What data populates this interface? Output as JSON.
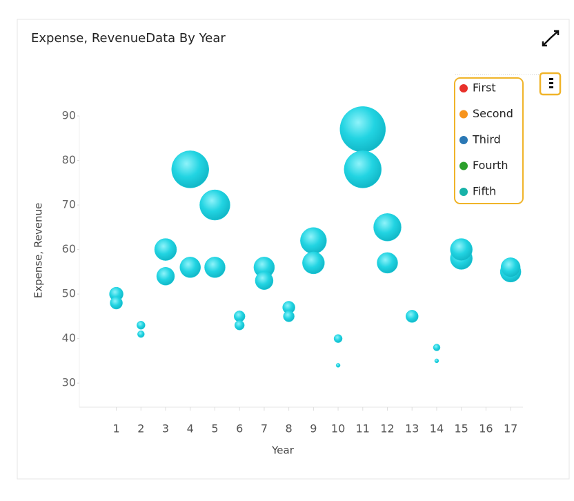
{
  "chart_data": {
    "type": "bubble",
    "title": "Expense, RevenueData By Year",
    "x_label": "Year",
    "y_label": "Expense, Revenue",
    "xlim": [
      -0.5,
      17.5
    ],
    "xticks": [
      1,
      2,
      3,
      4,
      5,
      6,
      7,
      8,
      9,
      10,
      11,
      12,
      13,
      14,
      15,
      16,
      17
    ],
    "ylim": [
      24.6,
      90
    ],
    "yticks": [
      30,
      40,
      50,
      60,
      70,
      80,
      90
    ],
    "color": "#22d4e2",
    "points": [
      {
        "x": 1,
        "y": 50,
        "size": 10
      },
      {
        "x": 1,
        "y": 48,
        "size": 9
      },
      {
        "x": 2,
        "y": 43,
        "size": 6
      },
      {
        "x": 2,
        "y": 41,
        "size": 5
      },
      {
        "x": 3,
        "y": 60,
        "size": 16
      },
      {
        "x": 3,
        "y": 54,
        "size": 13
      },
      {
        "x": 4,
        "y": 78,
        "size": 27
      },
      {
        "x": 4,
        "y": 56,
        "size": 15
      },
      {
        "x": 5,
        "y": 70,
        "size": 22
      },
      {
        "x": 5,
        "y": 56,
        "size": 15
      },
      {
        "x": 6,
        "y": 45,
        "size": 8
      },
      {
        "x": 6,
        "y": 43,
        "size": 7
      },
      {
        "x": 7,
        "y": 56,
        "size": 15
      },
      {
        "x": 7,
        "y": 53,
        "size": 13
      },
      {
        "x": 8,
        "y": 47,
        "size": 9
      },
      {
        "x": 8,
        "y": 45,
        "size": 8
      },
      {
        "x": 9,
        "y": 62,
        "size": 19
      },
      {
        "x": 9,
        "y": 57,
        "size": 16
      },
      {
        "x": 10,
        "y": 40,
        "size": 6
      },
      {
        "x": 10,
        "y": 34,
        "size": 3
      },
      {
        "x": 11,
        "y": 87,
        "size": 33
      },
      {
        "x": 11,
        "y": 78,
        "size": 27
      },
      {
        "x": 12,
        "y": 65,
        "size": 20
      },
      {
        "x": 12,
        "y": 57,
        "size": 15
      },
      {
        "x": 13,
        "y": 45,
        "size": 9
      },
      {
        "x": 14,
        "y": 38,
        "size": 5
      },
      {
        "x": 14,
        "y": 35,
        "size": 3
      },
      {
        "x": 15,
        "y": 58,
        "size": 16
      },
      {
        "x": 15,
        "y": 60,
        "size": 16
      },
      {
        "x": 17,
        "y": 55,
        "size": 15
      },
      {
        "x": 17,
        "y": 56,
        "size": 14
      }
    ],
    "legend": [
      {
        "name": "First",
        "color": "#e8302a"
      },
      {
        "name": "Second",
        "color": "#f7941d"
      },
      {
        "name": "Third",
        "color": "#2a78b5"
      },
      {
        "name": "Fourth",
        "color": "#2ca02c"
      },
      {
        "name": "Fifth",
        "color": "#17b2a8"
      }
    ]
  }
}
